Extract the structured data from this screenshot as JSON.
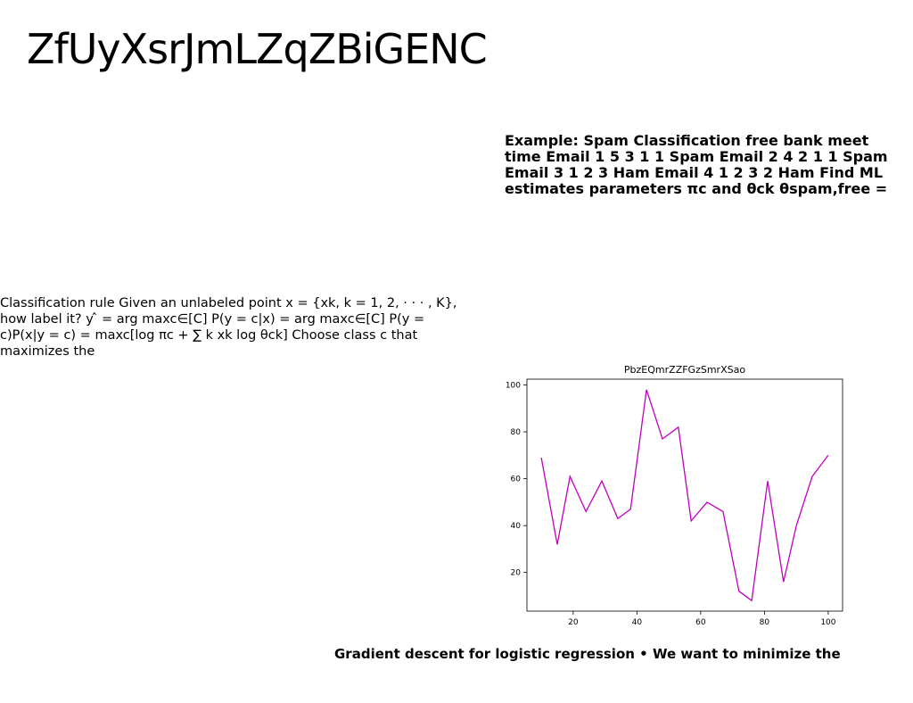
{
  "slide": {
    "title": "ZfUyXsrJmLZqZBiGENC",
    "example_text": "Example: Spam Classification free bank meet time Email 1 5 3 1 1 Spam Email 2 4 2 1 1 Spam Email 3 1 2 3 Ham Email 4 1 2 3 2 Ham Find ML estimates parameters πc and θck θspam,free =",
    "rule_text": "Classification rule Given an unlabeled point x = {xk, k = 1, 2, · · · , K}, how label it? y ̂ = arg maxc∈[C] P(y = c|x) = arg maxc∈[C] P(y = c)P(x|y = c) = maxc[log πc + ∑ k xk log θck] Choose class c that maximizes the",
    "gradient_text": "Gradient descent for logistic regression • We want to minimize the"
  },
  "chart_data": {
    "type": "line",
    "title": "PbzEQmrZZFGzSmrXSao",
    "xlabel": "",
    "ylabel": "",
    "x": [
      10,
      15,
      19,
      24,
      29,
      34,
      38,
      43,
      48,
      53,
      57,
      62,
      67,
      72,
      76,
      81,
      86,
      90,
      95,
      100
    ],
    "y": [
      69,
      32,
      61,
      46,
      59,
      43,
      47,
      98,
      77,
      82,
      42,
      50,
      46,
      12,
      8,
      59,
      16,
      40,
      61,
      70
    ],
    "xlim": [
      5.5,
      104.5
    ],
    "ylim": [
      3.5,
      102.5
    ],
    "xticks": [
      20,
      40,
      60,
      80,
      100
    ],
    "yticks": [
      20,
      40,
      60,
      80,
      100
    ],
    "line_color": "#bf00bf",
    "grid": false
  }
}
